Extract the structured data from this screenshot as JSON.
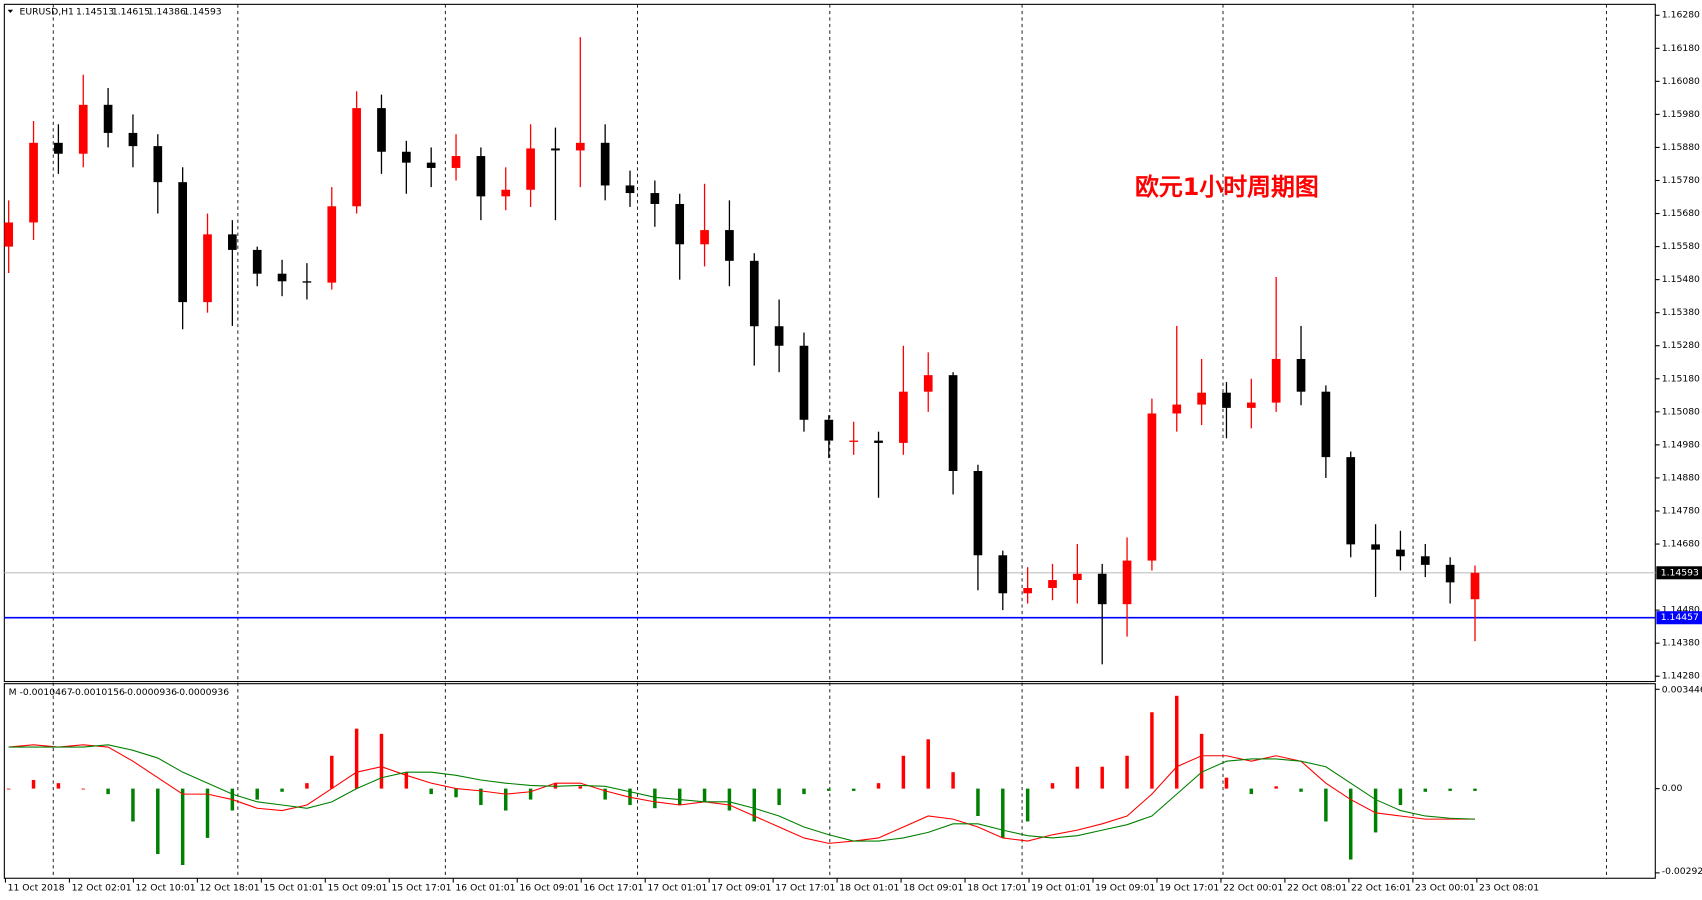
{
  "chart_data": [
    {
      "type": "candlestick",
      "symbol": "EURUSD,H1",
      "header_values": [
        1.14513,
        1.14615,
        1.14386,
        1.14593
      ],
      "annotation": "欧元1小时周期图",
      "up_color": "#ff0000",
      "down_color": "#000000",
      "open": [
        1.1558,
        1.15653,
        1.15894,
        1.15861,
        1.16009,
        1.15924,
        1.15884,
        1.15775,
        1.15412,
        1.15617,
        1.1557,
        1.15498,
        1.15475,
        1.15471,
        1.15702,
        1.15999,
        1.15867,
        1.15834,
        1.15818,
        1.15854,
        1.15732,
        1.15752,
        1.15877,
        1.15871,
        1.15894,
        1.15765,
        1.15742,
        1.15709,
        1.15587,
        1.1563,
        1.15537,
        1.15339,
        1.1528,
        1.15056,
        1.14993,
        1.14993,
        1.14986,
        1.15141,
        1.15191,
        1.14901,
        1.14646,
        1.14531,
        1.14547,
        1.14571,
        1.1459,
        1.14498,
        1.1463,
        1.15075,
        1.15102,
        1.15138,
        1.15092,
        1.15108,
        1.1524,
        1.15141,
        1.14943,
        1.14679,
        1.14663,
        1.14643,
        1.14617,
        1.14513
      ],
      "high": [
        1.1572,
        1.1596,
        1.1595,
        1.161,
        1.1606,
        1.1598,
        1.1592,
        1.1582,
        1.1568,
        1.1566,
        1.1558,
        1.1554,
        1.1553,
        1.1576,
        1.1605,
        1.1604,
        1.159,
        1.1588,
        1.1592,
        1.1588,
        1.1582,
        1.1595,
        1.1594,
        1.16214,
        1.1595,
        1.1581,
        1.1578,
        1.1574,
        1.1577,
        1.1572,
        1.1556,
        1.1542,
        1.1532,
        1.1507,
        1.1505,
        1.1502,
        1.1528,
        1.1526,
        1.152,
        1.1492,
        1.1466,
        1.1461,
        1.1462,
        1.1468,
        1.1462,
        1.147,
        1.1512,
        1.1534,
        1.1524,
        1.1517,
        1.1518,
        1.15488,
        1.1534,
        1.1516,
        1.1496,
        1.1474,
        1.1472,
        1.1468,
        1.1464,
        1.14615
      ],
      "low": [
        1.155,
        1.156,
        1.158,
        1.1582,
        1.1588,
        1.1582,
        1.1568,
        1.1533,
        1.1538,
        1.1534,
        1.1546,
        1.1543,
        1.1542,
        1.1545,
        1.1568,
        1.158,
        1.1574,
        1.1576,
        1.1578,
        1.1566,
        1.1569,
        1.157,
        1.1566,
        1.1576,
        1.1572,
        1.157,
        1.1564,
        1.1548,
        1.1552,
        1.1546,
        1.1522,
        1.152,
        1.1502,
        1.1494,
        1.1495,
        1.1482,
        1.1495,
        1.1508,
        1.1483,
        1.1454,
        1.1448,
        1.145,
        1.1451,
        1.145,
        1.14316,
        1.144,
        1.146,
        1.1502,
        1.1504,
        1.15,
        1.1503,
        1.1508,
        1.151,
        1.1488,
        1.1464,
        1.1452,
        1.146,
        1.1458,
        1.145,
        1.14386
      ],
      "close": [
        1.15653,
        1.15894,
        1.15861,
        1.16009,
        1.15924,
        1.15884,
        1.15775,
        1.15412,
        1.15617,
        1.1557,
        1.15498,
        1.15475,
        1.15471,
        1.15702,
        1.15999,
        1.15867,
        1.15834,
        1.15818,
        1.15854,
        1.15732,
        1.15752,
        1.15877,
        1.15871,
        1.15894,
        1.15765,
        1.15742,
        1.15709,
        1.15587,
        1.1563,
        1.15537,
        1.15339,
        1.1528,
        1.15056,
        1.14993,
        1.14993,
        1.14986,
        1.15141,
        1.15191,
        1.14901,
        1.14646,
        1.14531,
        1.14547,
        1.14571,
        1.1459,
        1.14498,
        1.1463,
        1.15075,
        1.15102,
        1.15138,
        1.15092,
        1.15108,
        1.1524,
        1.15141,
        1.14943,
        1.14679,
        1.14663,
        1.14643,
        1.14617,
        1.14564,
        1.14593
      ],
      "ylim": [
        1.14264,
        1.16313
      ],
      "yticks": [
        {
          "value": 1.1628,
          "label": "1.16280"
        },
        {
          "value": 1.1618,
          "label": "1.16180"
        },
        {
          "value": 1.1608,
          "label": "1.16080"
        },
        {
          "value": 1.1598,
          "label": "1.15980"
        },
        {
          "value": 1.1588,
          "label": "1.15880"
        },
        {
          "value": 1.1578,
          "label": "1.15780"
        },
        {
          "value": 1.1568,
          "label": "1.15680"
        },
        {
          "value": 1.1558,
          "label": "1.15580"
        },
        {
          "value": 1.1548,
          "label": "1.15480"
        },
        {
          "value": 1.1538,
          "label": "1.15380"
        },
        {
          "value": 1.1528,
          "label": "1.15280"
        },
        {
          "value": 1.1518,
          "label": "1.15180"
        },
        {
          "value": 1.1508,
          "label": "1.15080"
        },
        {
          "value": 1.1498,
          "label": "1.14980"
        },
        {
          "value": 1.1488,
          "label": "1.14880"
        },
        {
          "value": 1.1478,
          "label": "1.14780"
        },
        {
          "value": 1.1468,
          "label": "1.14680"
        },
        {
          "value": 1.1448,
          "label": "1.14480"
        },
        {
          "value": 1.1438,
          "label": "1.14380"
        },
        {
          "value": 1.1428,
          "label": "1.14280"
        }
      ],
      "current_price": 1.14593,
      "current_color": "#c0c0c0",
      "hline": 1.14457,
      "hline_color": "#0000ff",
      "xtick_labels": [
        "11 Oct 2018",
        "12 Oct 02:01",
        "12 Oct 10:01",
        "12 Oct 18:01",
        "15 Oct 01:01",
        "15 Oct 09:01",
        "15 Oct 17:01",
        "16 Oct 01:01",
        "16 Oct 09:01",
        "16 Oct 17:01",
        "17 Oct 01:01",
        "17 Oct 09:01",
        "17 Oct 17:01",
        "18 Oct 01:01",
        "18 Oct 09:01",
        "18 Oct 17:01",
        "19 Oct 01:01",
        "19 Oct 09:01",
        "19 Oct 17:01",
        "22 Oct 00:01",
        "22 Oct 08:01",
        "22 Oct 16:01",
        "23 Oct 00:01",
        "23 Oct 08:01"
      ]
    },
    {
      "type": "bar",
      "label": "M",
      "header_values": [
        -0.0010467,
        -0.0010156,
        -9.36e-05,
        -9.36e-05
      ],
      "up_color": "#ff0000",
      "down_color": "#008000",
      "values": [
        0,
        0.0003,
        0.00019,
        0,
        -0.00019,
        -0.00114,
        -0.00227,
        -0.00265,
        -0.00171,
        -0.00076,
        -0.00038,
        -0.00011,
        0.00019,
        0.00114,
        0.00208,
        0.0019,
        0.00057,
        -0.00019,
        -0.0003,
        -0.00057,
        -0.00076,
        -0.00038,
        0.00019,
        8e-05,
        -0.00038,
        -0.00057,
        -0.00068,
        -0.00057,
        -0.00045,
        -0.00076,
        -0.00114,
        -0.00057,
        -0.00019,
        -8e-05,
        -8e-05,
        0.00019,
        0.00114,
        0.00171,
        0.00057,
        -0.00095,
        -0.00171,
        -0.00114,
        0.00019,
        0.00076,
        0.00076,
        0.00114,
        0.00265,
        0.00322,
        0.0019,
        0.00038,
        -0.00019,
        8e-05,
        -0.00011,
        -0.00114,
        -0.00246,
        -0.00152,
        -0.00057,
        -0.00011,
        -8e-05,
        -8e-05
      ],
      "series": [
        {
          "color": "#ff0000",
          "values": [
            0.00144,
            0.00152,
            0.00144,
            0.00152,
            0.00144,
            0.00095,
            0.00038,
            -0.00019,
            -0.00019,
            -0.00038,
            -0.00068,
            -0.00076,
            -0.00057,
            0,
            0.00057,
            0.00076,
            0.00046,
            0.00019,
            0,
            -8e-05,
            -0.00019,
            -0.00011,
            0.00019,
            0.00019,
            -8e-05,
            -0.0003,
            -0.00046,
            -0.00057,
            -0.00046,
            -0.00057,
            -0.00095,
            -0.00133,
            -0.00171,
            -0.0019,
            -0.00182,
            -0.00171,
            -0.00133,
            -0.00095,
            -0.00106,
            -0.00133,
            -0.00171,
            -0.00182,
            -0.0016,
            -0.00144,
            -0.00122,
            -0.00095,
            -0.00019,
            0.00076,
            0.00114,
            0.00114,
            0.00095,
            0.00114,
            0.00095,
            0.00019,
            -0.00038,
            -0.00084,
            -0.00095,
            -0.00106,
            -0.00106,
            -0.00106
          ]
        },
        {
          "color": "#008000",
          "values": [
            0.00144,
            0.00144,
            0.00144,
            0.00144,
            0.00152,
            0.00133,
            0.00106,
            0.00057,
            0.00019,
            -0.00019,
            -0.00046,
            -0.00057,
            -0.00068,
            -0.00046,
            0,
            0.00038,
            0.00057,
            0.00057,
            0.00046,
            0.0003,
            0.00019,
            0.00011,
            8e-05,
            0.00011,
            8e-05,
            -0.00011,
            -0.0003,
            -0.00038,
            -0.00046,
            -0.00046,
            -0.00068,
            -0.00095,
            -0.00133,
            -0.0016,
            -0.00182,
            -0.00182,
            -0.00171,
            -0.00152,
            -0.00122,
            -0.00122,
            -0.00144,
            -0.00163,
            -0.00171,
            -0.00163,
            -0.00144,
            -0.00125,
            -0.00095,
            -0.00019,
            0.00057,
            0.00095,
            0.00103,
            0.00103,
            0.00095,
            0.00076,
            0.00019,
            -0.00038,
            -0.00076,
            -0.00095,
            -0.00103,
            -0.00106
          ]
        }
      ],
      "ylim": [
        -0.00311,
        0.00364
      ],
      "yticks": [
        0.003446,
        {
          "value": 0,
          "label": "0.00"
        },
        -0.002923
      ]
    }
  ]
}
